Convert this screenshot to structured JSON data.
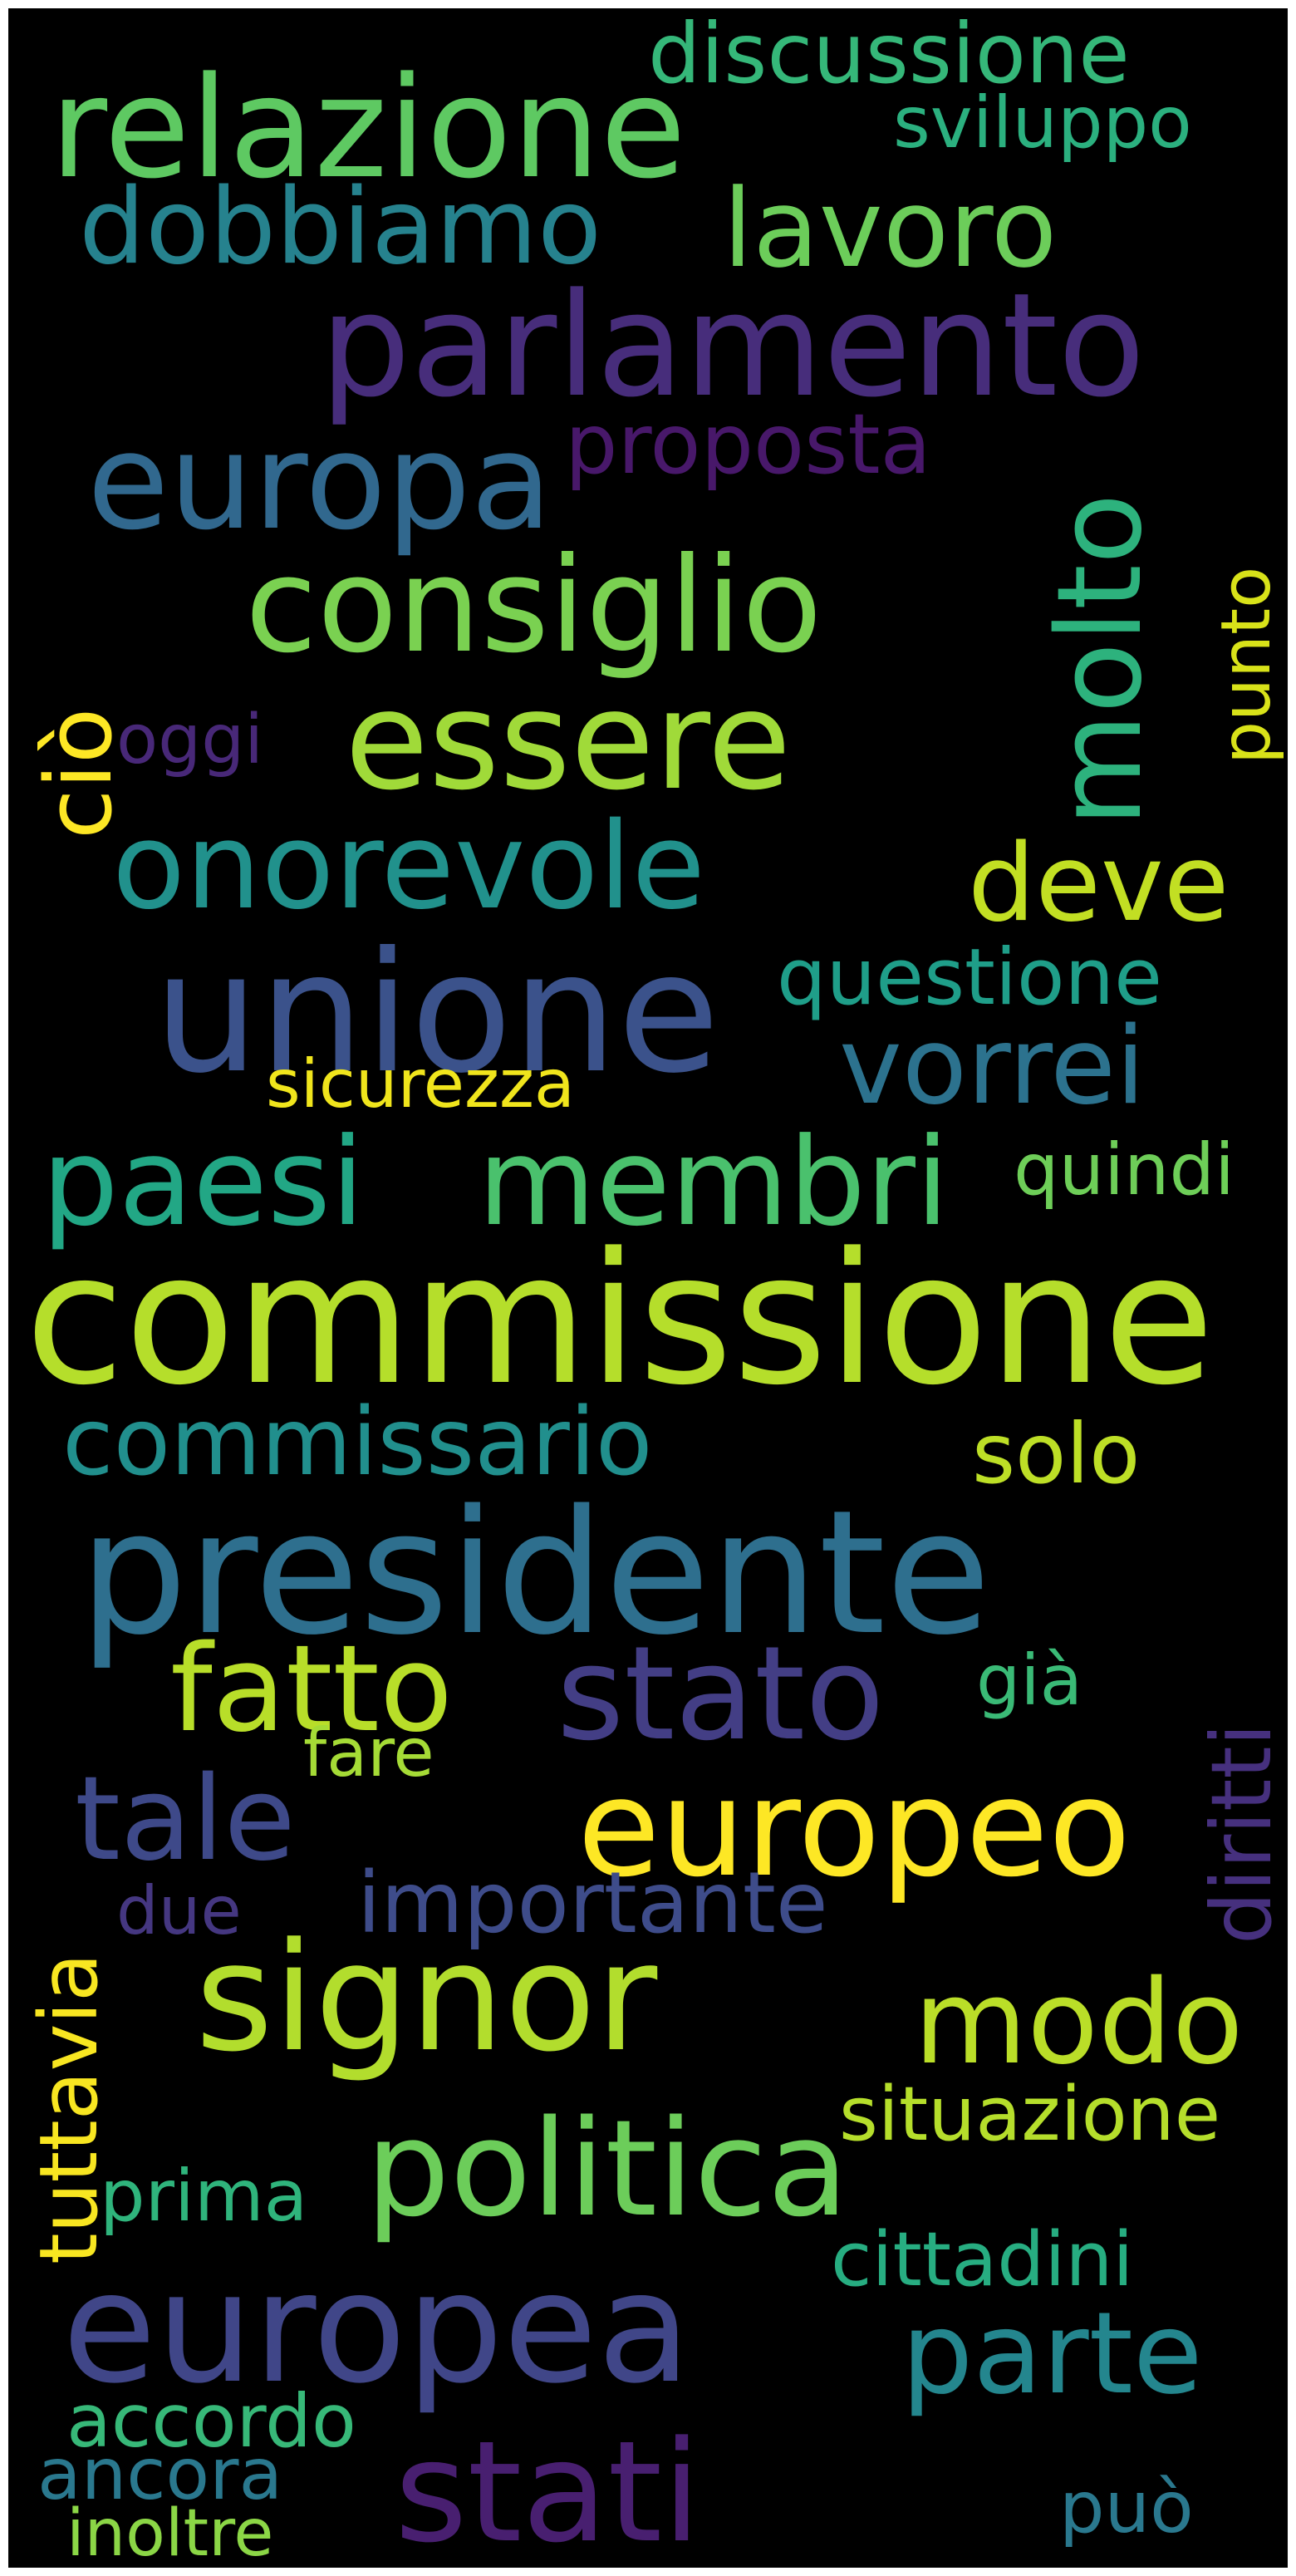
{
  "words": [
    {
      "text": "relazione",
      "color": "#5ec962"
    },
    {
      "text": "discussione",
      "color": "#35b779"
    },
    {
      "text": "sviluppo",
      "color": "#2bb07f"
    },
    {
      "text": "dobbiamo",
      "color": "#26828e"
    },
    {
      "text": "lavoro",
      "color": "#6ccd5a"
    },
    {
      "text": "parlamento",
      "color": "#472d7b"
    },
    {
      "text": "europa",
      "color": "#31688e"
    },
    {
      "text": "proposta",
      "color": "#48186a"
    },
    {
      "text": "molto",
      "color": "#2db27d"
    },
    {
      "text": "consiglio",
      "color": "#7ad151"
    },
    {
      "text": "ciò",
      "color": "#fde725"
    },
    {
      "text": "oggi",
      "color": "#482878"
    },
    {
      "text": "essere",
      "color": "#a0da39"
    },
    {
      "text": "punto",
      "color": "#d8e219"
    },
    {
      "text": "onorevole",
      "color": "#21918c"
    },
    {
      "text": "deve",
      "color": "#c2df23"
    },
    {
      "text": "unione",
      "color": "#3b528b"
    },
    {
      "text": "questione",
      "color": "#1f9e89"
    },
    {
      "text": "vorrei",
      "color": "#2c728e"
    },
    {
      "text": "sicurezza",
      "color": "#f0e51c"
    },
    {
      "text": "paesi",
      "color": "#22a785"
    },
    {
      "text": "membri",
      "color": "#4ac16d"
    },
    {
      "text": "quindi",
      "color": "#6ece58"
    },
    {
      "text": "commissione",
      "color": "#b5de2b"
    },
    {
      "text": "commissario",
      "color": "#218f8d"
    },
    {
      "text": "solo",
      "color": "#bddf26"
    },
    {
      "text": "presidente",
      "color": "#2e6f8e"
    },
    {
      "text": "fatto",
      "color": "#b8de29"
    },
    {
      "text": "stato",
      "color": "#433e85"
    },
    {
      "text": "già",
      "color": "#3aba76"
    },
    {
      "text": "diritti",
      "color": "#46307e"
    },
    {
      "text": "fare",
      "color": "#a5db36"
    },
    {
      "text": "tale",
      "color": "#3e4989"
    },
    {
      "text": "europeo",
      "color": "#fde725"
    },
    {
      "text": "tuttavia",
      "color": "#f8e621"
    },
    {
      "text": "due",
      "color": "#453781"
    },
    {
      "text": "importante",
      "color": "#3e4c8a"
    },
    {
      "text": "signor",
      "color": "#b2dd2d"
    },
    {
      "text": "modo",
      "color": "#bade28"
    },
    {
      "text": "situazione",
      "color": "#b5de2b"
    },
    {
      "text": "politica",
      "color": "#6ccd5a"
    },
    {
      "text": "prima",
      "color": "#2fb47c"
    },
    {
      "text": "cittadini",
      "color": "#27ad81"
    },
    {
      "text": "europea",
      "color": "#404688"
    },
    {
      "text": "parte",
      "color": "#24868e"
    },
    {
      "text": "accordo",
      "color": "#37b878"
    },
    {
      "text": "ancora",
      "color": "#2a788e"
    },
    {
      "text": "stati",
      "color": "#481f70"
    },
    {
      "text": "può",
      "color": "#2a788e"
    },
    {
      "text": "inoltre",
      "color": "#8bd646"
    }
  ]
}
